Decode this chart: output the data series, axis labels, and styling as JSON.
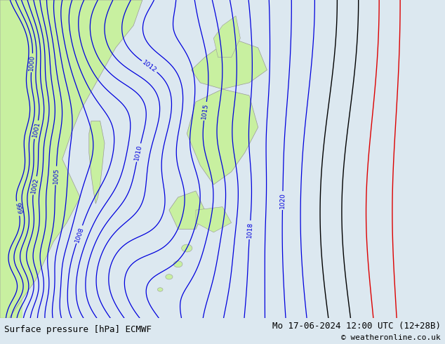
{
  "title_left": "Surface pressure [hPa] ECMWF",
  "title_right": "Mo 17-06-2024 12:00 UTC (12+28B)",
  "copyright": "© weatheronline.co.uk",
  "bg_color": "#dce8f0",
  "land_color": "#c8f0a0",
  "sea_color": "#dce8f0",
  "contour_color_blue": "#0000dd",
  "contour_color_black": "#000000",
  "contour_color_red": "#dd0000",
  "contour_color_gray": "#999999",
  "footer_bg": "#c8d8e4",
  "text_color": "#000000",
  "font_size_footer": 9,
  "figwidth": 6.34,
  "figheight": 4.9,
  "dpi": 100,
  "levels_blue": [
    999,
    1000,
    1001,
    1002,
    1003,
    1004,
    1005,
    1006,
    1007,
    1008,
    1009,
    1010,
    1011,
    1012,
    1013,
    1014,
    1015,
    1016,
    1017,
    1018,
    1019,
    1020,
    1021
  ],
  "levels_black": [
    1022,
    1023
  ],
  "levels_red": [
    1024,
    1025
  ]
}
